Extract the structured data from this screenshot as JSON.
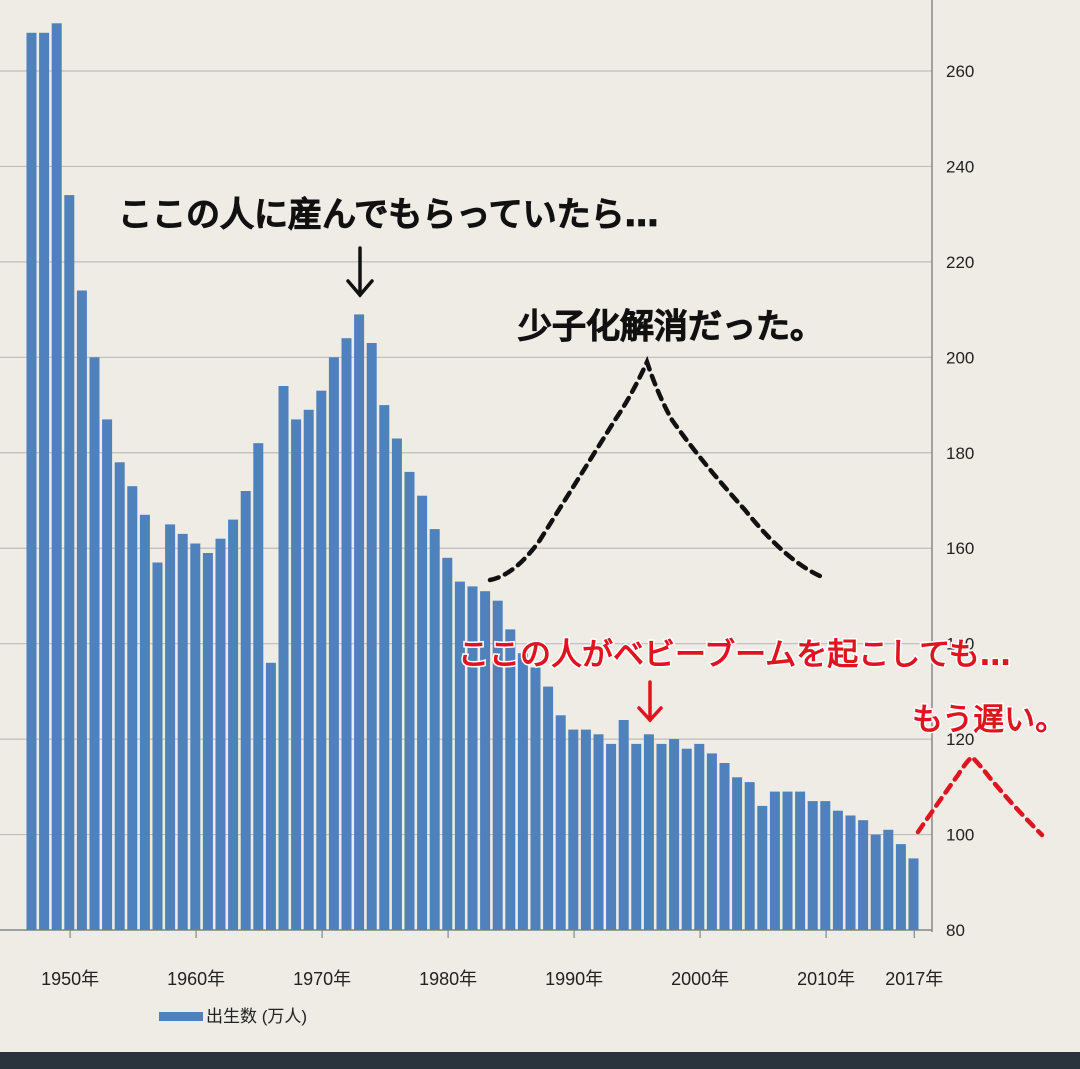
{
  "chart_data": {
    "type": "bar",
    "title": "",
    "xlabel": "",
    "ylabel": "",
    "ylim": [
      80,
      270
    ],
    "yticks": [
      80,
      100,
      120,
      140,
      160,
      180,
      200,
      220,
      240,
      260
    ],
    "y_axis_side": "right",
    "grid": true,
    "legend": {
      "position": "bottom-left",
      "label": "出生数 (万人)"
    },
    "bar_color": "#4f81bd",
    "x": [
      1947,
      1948,
      1949,
      1950,
      1951,
      1952,
      1953,
      1954,
      1955,
      1956,
      1957,
      1958,
      1959,
      1960,
      1961,
      1962,
      1963,
      1964,
      1965,
      1966,
      1967,
      1968,
      1969,
      1970,
      1971,
      1972,
      1973,
      1974,
      1975,
      1976,
      1977,
      1978,
      1979,
      1980,
      1981,
      1982,
      1983,
      1984,
      1985,
      1986,
      1987,
      1988,
      1989,
      1990,
      1991,
      1992,
      1993,
      1994,
      1995,
      1996,
      1997,
      1998,
      1999,
      2000,
      2001,
      2002,
      2003,
      2004,
      2005,
      2006,
      2007,
      2008,
      2009,
      2010,
      2011,
      2012,
      2013,
      2014,
      2015,
      2016,
      2017
    ],
    "values": [
      268,
      268,
      270,
      234,
      214,
      200,
      187,
      178,
      173,
      167,
      157,
      165,
      163,
      161,
      159,
      162,
      166,
      172,
      182,
      136,
      194,
      187,
      189,
      193,
      200,
      204,
      209,
      203,
      190,
      183,
      176,
      171,
      164,
      158,
      153,
      152,
      151,
      149,
      143,
      138,
      135,
      131,
      125,
      122,
      122,
      121,
      119,
      124,
      119,
      121,
      119,
      120,
      118,
      119,
      117,
      115,
      112,
      111,
      106,
      109,
      109,
      109,
      107,
      107,
      105,
      104,
      103,
      100,
      101,
      98,
      95
    ],
    "x_tick_labels": [
      {
        "year": 1950,
        "label": "1950年"
      },
      {
        "year": 1960,
        "label": "1960年"
      },
      {
        "year": 1970,
        "label": "1970年"
      },
      {
        "year": 1980,
        "label": "1980年"
      },
      {
        "year": 1990,
        "label": "1990年"
      },
      {
        "year": 2000,
        "label": "2000年"
      },
      {
        "year": 2010,
        "label": "2010年"
      },
      {
        "year": 2017,
        "label": "2017年"
      }
    ],
    "annotations": [
      {
        "id": "peak-note",
        "text": "ここの人に産んでもらっていたら…",
        "color": "#111111"
      },
      {
        "id": "resolve-note",
        "text": "少子化解消だった。",
        "color": "#111111"
      },
      {
        "id": "boom-note",
        "text": "ここの人がベビーブームを起こしても…",
        "color": "#e0141e"
      },
      {
        "id": "late-note",
        "text": "もう遅い。",
        "color": "#e0141e"
      }
    ]
  },
  "colors": {
    "background": "#eeece4",
    "grid": "#bdbdbd",
    "annotation_black": "#111111",
    "annotation_red": "#e0141e",
    "bottom_band": "#2b333d"
  }
}
